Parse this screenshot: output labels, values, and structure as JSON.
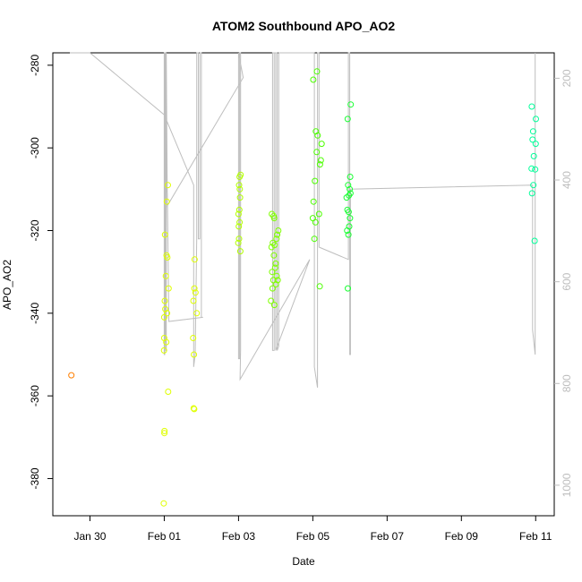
{
  "chart_data": {
    "type": "scatter",
    "title": "ATOM2 Southbound APO_AO2",
    "xlabel": "Date",
    "ylabel": "APO_AO2",
    "x_range": [
      "2017-01-29 00:00",
      "2017-02-11 12:00"
    ],
    "ylim": [
      -389,
      -277
    ],
    "y2lim": [
      1060,
      150
    ],
    "xticks": [
      {
        "date": "2017-01-30",
        "label": "Jan 30"
      },
      {
        "date": "2017-02-01",
        "label": "Feb 01"
      },
      {
        "date": "2017-02-03",
        "label": "Feb 03"
      },
      {
        "date": "2017-02-05",
        "label": "Feb 05"
      },
      {
        "date": "2017-02-07",
        "label": "Feb 07"
      },
      {
        "date": "2017-02-09",
        "label": "Feb 09"
      },
      {
        "date": "2017-02-11",
        "label": "Feb 11"
      }
    ],
    "yticks": [
      -280,
      -300,
      -320,
      -340,
      -360,
      -380
    ],
    "y2ticks": [
      200,
      400,
      600,
      800,
      1000
    ],
    "grid": false,
    "points": [
      {
        "x": "2017-01-29 12:00",
        "y": -355,
        "color": "#ff7f00"
      },
      {
        "x": "2017-01-31 23:40",
        "y": -386,
        "color": "#dfff00"
      },
      {
        "x": "2017-02-01 00:05",
        "y": -369,
        "color": "#dfff00"
      },
      {
        "x": "2017-02-01 00:10",
        "y": -368.5,
        "color": "#dfff00"
      },
      {
        "x": "2017-02-01 02:30",
        "y": -359,
        "color": "#dfff00"
      },
      {
        "x": "2017-01-31 23:50",
        "y": -349,
        "color": "#dfff00"
      },
      {
        "x": "2017-02-01 00:00",
        "y": -346,
        "color": "#dfff00"
      },
      {
        "x": "2017-02-01 01:20",
        "y": -347,
        "color": "#dfff00"
      },
      {
        "x": "2017-02-01 00:00",
        "y": -341,
        "color": "#dfff00"
      },
      {
        "x": "2017-02-01 00:40",
        "y": -339,
        "color": "#dfff00"
      },
      {
        "x": "2017-02-01 01:50",
        "y": -340,
        "color": "#dfff00"
      },
      {
        "x": "2017-02-01 00:20",
        "y": -337,
        "color": "#dfff00"
      },
      {
        "x": "2017-02-01 02:50",
        "y": -334,
        "color": "#dfff00"
      },
      {
        "x": "2017-02-01 01:00",
        "y": -331,
        "color": "#dfff00"
      },
      {
        "x": "2017-02-01 01:30",
        "y": -326,
        "color": "#dfff00"
      },
      {
        "x": "2017-02-01 02:00",
        "y": -326.5,
        "color": "#dfff00"
      },
      {
        "x": "2017-02-01 00:30",
        "y": -321,
        "color": "#dfff00"
      },
      {
        "x": "2017-02-01 01:40",
        "y": -313,
        "color": "#dfff00"
      },
      {
        "x": "2017-02-01 02:20",
        "y": -309,
        "color": "#dfff00"
      },
      {
        "x": "2017-02-01 19:00",
        "y": -363,
        "color": "#dfff00"
      },
      {
        "x": "2017-02-01 19:20",
        "y": -363.2,
        "color": "#dfff00"
      },
      {
        "x": "2017-02-01 19:10",
        "y": -350,
        "color": "#dfff00"
      },
      {
        "x": "2017-02-01 18:40",
        "y": -346,
        "color": "#dfff00"
      },
      {
        "x": "2017-02-01 21:00",
        "y": -340,
        "color": "#dfff00"
      },
      {
        "x": "2017-02-01 18:50",
        "y": -337,
        "color": "#dfff00"
      },
      {
        "x": "2017-02-01 19:30",
        "y": -334,
        "color": "#dfff00"
      },
      {
        "x": "2017-02-01 20:10",
        "y": -335,
        "color": "#dfff00"
      },
      {
        "x": "2017-02-01 19:40",
        "y": -327,
        "color": "#dfff00"
      },
      {
        "x": "2017-02-02 23:50",
        "y": -323,
        "color": "#b3ff00"
      },
      {
        "x": "2017-02-03 00:20",
        "y": -322,
        "color": "#b3ff00"
      },
      {
        "x": "2017-02-03 01:10",
        "y": -325,
        "color": "#b3ff00"
      },
      {
        "x": "2017-02-03 00:10",
        "y": -319,
        "color": "#b3ff00"
      },
      {
        "x": "2017-02-03 00:40",
        "y": -318,
        "color": "#b3ff00"
      },
      {
        "x": "2017-02-03 00:00",
        "y": -316,
        "color": "#b3ff00"
      },
      {
        "x": "2017-02-03 00:30",
        "y": -315,
        "color": "#b3ff00"
      },
      {
        "x": "2017-02-03 01:00",
        "y": -312,
        "color": "#b3ff00"
      },
      {
        "x": "2017-02-03 00:50",
        "y": -310,
        "color": "#b3ff00"
      },
      {
        "x": "2017-02-03 00:20",
        "y": -309,
        "color": "#b3ff00"
      },
      {
        "x": "2017-02-03 01:20",
        "y": -306.5,
        "color": "#b3ff00"
      },
      {
        "x": "2017-02-03 00:40",
        "y": -307,
        "color": "#b3ff00"
      },
      {
        "x": "2017-02-03 21:00",
        "y": -337,
        "color": "#7fff00"
      },
      {
        "x": "2017-02-03 22:00",
        "y": -334,
        "color": "#7fff00"
      },
      {
        "x": "2017-02-03 23:10",
        "y": -338,
        "color": "#7fff00"
      },
      {
        "x": "2017-02-03 22:30",
        "y": -332,
        "color": "#7fff00"
      },
      {
        "x": "2017-02-04 00:10",
        "y": -333,
        "color": "#7fff00"
      },
      {
        "x": "2017-02-04 00:40",
        "y": -331,
        "color": "#7fff00"
      },
      {
        "x": "2017-02-03 21:40",
        "y": -330,
        "color": "#7fff00"
      },
      {
        "x": "2017-02-03 23:40",
        "y": -329,
        "color": "#7fff00"
      },
      {
        "x": "2017-02-04 01:20",
        "y": -332,
        "color": "#7fff00"
      },
      {
        "x": "2017-02-03 22:50",
        "y": -326,
        "color": "#7fff00"
      },
      {
        "x": "2017-02-04 00:00",
        "y": -328,
        "color": "#7fff00"
      },
      {
        "x": "2017-02-03 21:20",
        "y": -324,
        "color": "#7fff00"
      },
      {
        "x": "2017-02-03 22:10",
        "y": -323,
        "color": "#7fff00"
      },
      {
        "x": "2017-02-03 23:20",
        "y": -323.5,
        "color": "#7fff00"
      },
      {
        "x": "2017-02-04 00:30",
        "y": -322,
        "color": "#7fff00"
      },
      {
        "x": "2017-02-04 01:00",
        "y": -321,
        "color": "#7fff00"
      },
      {
        "x": "2017-02-04 01:40",
        "y": -320,
        "color": "#7fff00"
      },
      {
        "x": "2017-02-03 23:00",
        "y": -317,
        "color": "#7fff00"
      },
      {
        "x": "2017-02-03 21:30",
        "y": -316,
        "color": "#7fff00"
      },
      {
        "x": "2017-02-03 22:40",
        "y": -316.5,
        "color": "#7fff00"
      },
      {
        "x": "2017-02-05 04:30",
        "y": -333.5,
        "color": "#4cff00"
      },
      {
        "x": "2017-02-05 01:00",
        "y": -322,
        "color": "#4cff00"
      },
      {
        "x": "2017-02-05 00:00",
        "y": -317,
        "color": "#4cff00"
      },
      {
        "x": "2017-02-05 01:40",
        "y": -318,
        "color": "#4cff00"
      },
      {
        "x": "2017-02-05 04:00",
        "y": -316,
        "color": "#4cff00"
      },
      {
        "x": "2017-02-05 00:30",
        "y": -313,
        "color": "#4cff00"
      },
      {
        "x": "2017-02-05 01:20",
        "y": -308,
        "color": "#4cff00"
      },
      {
        "x": "2017-02-05 04:40",
        "y": -304,
        "color": "#4cff00"
      },
      {
        "x": "2017-02-05 02:30",
        "y": -301,
        "color": "#4cff00"
      },
      {
        "x": "2017-02-05 05:10",
        "y": -303,
        "color": "#4cff00"
      },
      {
        "x": "2017-02-05 03:10",
        "y": -297,
        "color": "#4cff00"
      },
      {
        "x": "2017-02-05 05:40",
        "y": -299,
        "color": "#4cff00"
      },
      {
        "x": "2017-02-05 02:00",
        "y": -296,
        "color": "#4cff00"
      },
      {
        "x": "2017-02-05 00:20",
        "y": -283.5,
        "color": "#4cff00"
      },
      {
        "x": "2017-02-05 02:40",
        "y": -281.5,
        "color": "#4cff00"
      },
      {
        "x": "2017-02-05 22:40",
        "y": -334,
        "color": "#1aff33"
      },
      {
        "x": "2017-02-05 22:10",
        "y": -320,
        "color": "#1aff33"
      },
      {
        "x": "2017-02-05 23:00",
        "y": -321,
        "color": "#1aff33"
      },
      {
        "x": "2017-02-05 23:30",
        "y": -319,
        "color": "#1aff33"
      },
      {
        "x": "2017-02-06 00:00",
        "y": -317,
        "color": "#1aff33"
      },
      {
        "x": "2017-02-05 22:20",
        "y": -315,
        "color": "#1aff33"
      },
      {
        "x": "2017-02-05 23:10",
        "y": -315.5,
        "color": "#1aff33"
      },
      {
        "x": "2017-02-05 21:50",
        "y": -312,
        "color": "#1aff33"
      },
      {
        "x": "2017-02-06 00:20",
        "y": -311,
        "color": "#1aff33"
      },
      {
        "x": "2017-02-05 23:50",
        "y": -310,
        "color": "#1aff33"
      },
      {
        "x": "2017-02-05 22:50",
        "y": -309,
        "color": "#1aff33"
      },
      {
        "x": "2017-02-05 23:20",
        "y": -311.5,
        "color": "#1aff33"
      },
      {
        "x": "2017-02-06 00:10",
        "y": -307,
        "color": "#1aff33"
      },
      {
        "x": "2017-02-05 22:30",
        "y": -293,
        "color": "#1aff33"
      },
      {
        "x": "2017-02-06 00:30",
        "y": -289.5,
        "color": "#1aff33"
      },
      {
        "x": "2017-02-10 21:40",
        "y": -311,
        "color": "#00ff99"
      },
      {
        "x": "2017-02-10 22:30",
        "y": -309,
        "color": "#00ff99"
      },
      {
        "x": "2017-02-10 21:20",
        "y": -305,
        "color": "#00ff99"
      },
      {
        "x": "2017-02-10 23:40",
        "y": -305.2,
        "color": "#00ff99"
      },
      {
        "x": "2017-02-10 22:50",
        "y": -302,
        "color": "#00ff99"
      },
      {
        "x": "2017-02-11 00:00",
        "y": -299,
        "color": "#00ff99"
      },
      {
        "x": "2017-02-10 22:00",
        "y": -298,
        "color": "#00ff99"
      },
      {
        "x": "2017-02-10 22:20",
        "y": -296,
        "color": "#00ff99"
      },
      {
        "x": "2017-02-11 00:10",
        "y": -293,
        "color": "#00ff99"
      },
      {
        "x": "2017-02-10 21:30",
        "y": -290,
        "color": "#00ff99"
      },
      {
        "x": "2017-02-10 23:20",
        "y": -322.5,
        "color": "#00ff99"
      }
    ],
    "pressure_path": [
      [
        "2017-01-29 11:00",
        -277
      ],
      [
        "2017-01-30 00:00",
        -277
      ],
      [
        "2017-02-01 00:00",
        -292
      ],
      [
        "2017-02-01 19:00",
        -309
      ],
      [
        "2017-02-01 19:00",
        -353
      ],
      [
        "2017-02-01 20:00",
        -350
      ],
      [
        "2017-02-01 21:00",
        -322
      ],
      [
        "2017-02-01 21:00",
        -277
      ],
      [
        "2017-02-01 22:00",
        -277
      ],
      [
        "2017-02-01 22:00",
        -322
      ],
      [
        "2017-02-01 23:00",
        -322
      ],
      [
        "2017-02-01 23:00",
        -277
      ],
      [
        "2017-02-02 00:00",
        -277
      ],
      [
        "2017-02-02 00:00",
        -341
      ],
      [
        "2017-02-02 01:00",
        -341
      ],
      [
        "2017-02-01 03:00",
        -342
      ],
      [
        "2017-02-01 02:00",
        -311
      ],
      [
        "2017-02-01 01:00",
        -309
      ],
      [
        "2017-02-01 00:40",
        -347
      ],
      [
        "2017-02-01 00:30",
        -277
      ],
      [
        "2017-02-01 00:00",
        -277
      ],
      [
        "2017-02-01 00:00",
        -350
      ],
      [
        "2017-02-01 00:20",
        -350
      ],
      [
        "2017-02-01 00:20",
        -277
      ],
      [
        "2017-02-01 01:00",
        -277
      ],
      [
        "2017-02-01 01:00",
        -349
      ],
      [
        "2017-02-01 01:20",
        -349
      ],
      [
        "2017-02-01 01:20",
        -277
      ],
      [
        "2017-02-01 02:00",
        -314
      ],
      [
        "2017-02-03 03:00",
        -283
      ],
      [
        "2017-02-03 00:00",
        -277
      ],
      [
        "2017-02-03 00:00",
        -351
      ],
      [
        "2017-02-03 00:40",
        -351
      ],
      [
        "2017-02-03 00:40",
        -277
      ],
      [
        "2017-02-03 01:20",
        -277
      ],
      [
        "2017-02-03 01:20",
        -349
      ],
      [
        "2017-02-03 01:00",
        -356
      ],
      [
        "2017-02-04 22:00",
        -327
      ],
      [
        "2017-02-04 00:00",
        -349
      ],
      [
        "2017-02-04 00:00",
        -277
      ],
      [
        "2017-02-03 22:00",
        -277
      ],
      [
        "2017-02-03 22:00",
        -349
      ],
      [
        "2017-02-03 23:00",
        -349
      ],
      [
        "2017-02-03 23:00",
        -277
      ],
      [
        "2017-02-04 01:00",
        -277
      ],
      [
        "2017-02-04 01:00",
        -349
      ],
      [
        "2017-02-04 02:00",
        -348
      ],
      [
        "2017-02-04 02:00",
        -277
      ],
      [
        "2017-02-05 01:00",
        -277
      ],
      [
        "2017-02-05 01:00",
        -353
      ],
      [
        "2017-02-05 03:00",
        -358
      ],
      [
        "2017-02-05 03:00",
        -277
      ],
      [
        "2017-02-05 04:00",
        -277
      ],
      [
        "2017-02-05 04:00",
        -324
      ],
      [
        "2017-02-05 23:00",
        -327
      ],
      [
        "2017-02-05 23:00",
        -277
      ],
      [
        "2017-02-05 23:50",
        -277
      ],
      [
        "2017-02-05 23:50",
        -350
      ],
      [
        "2017-02-06 00:20",
        -350
      ],
      [
        "2017-02-06 00:20",
        -310
      ],
      [
        "2017-02-10 22:00",
        -309
      ],
      [
        "2017-02-10 22:00",
        -344
      ],
      [
        "2017-02-10 23:40",
        -350
      ],
      [
        "2017-02-10 23:40",
        -277
      ]
    ]
  }
}
